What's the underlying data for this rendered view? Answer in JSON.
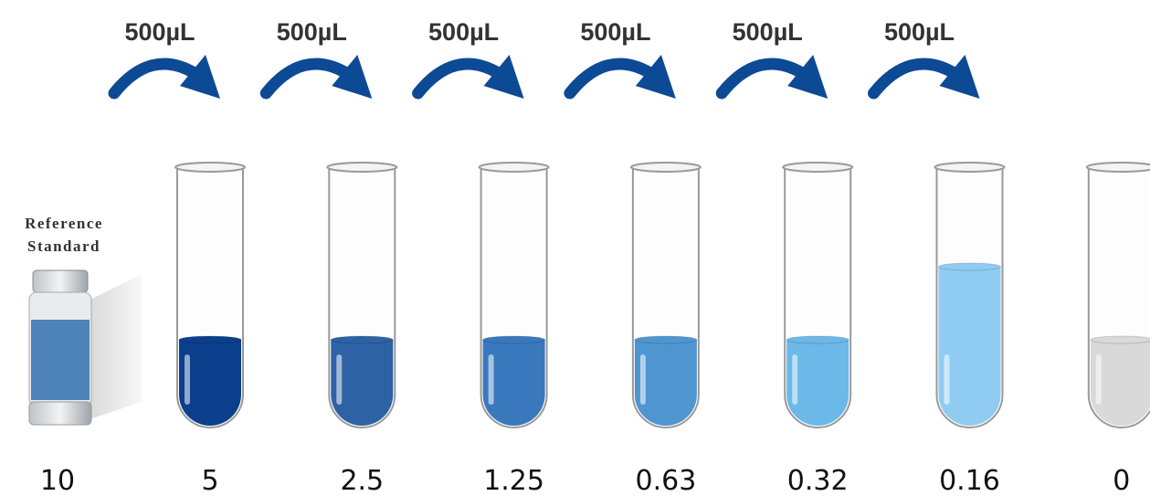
{
  "transfers": [
    "500µL",
    "500µL",
    "500µL",
    "500µL",
    "500µL",
    "500µL"
  ],
  "reference_label": {
    "line1": "Reference",
    "line2": "Standard"
  },
  "concentrations": [
    "10",
    "5",
    "2.5",
    "1.25",
    "0.63",
    "0.32",
    "0.16",
    "0"
  ]
}
